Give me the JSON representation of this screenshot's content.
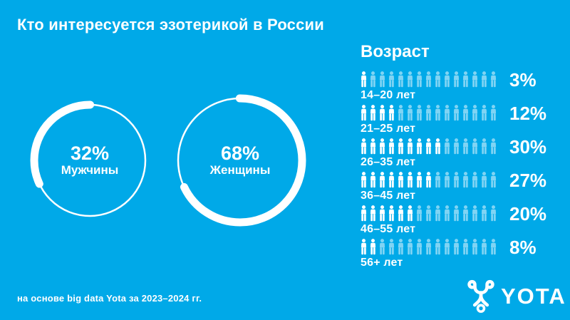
{
  "header": {
    "title": "Кто интересуется эзотерикой в России"
  },
  "donuts": [
    {
      "pct": "32%",
      "label": "Мужчины",
      "value": 32
    },
    {
      "pct": "68%",
      "label": "Женщины",
      "value": 68
    }
  ],
  "age": {
    "heading": "Возраст",
    "icons_per_row": 15,
    "rows": [
      {
        "label": "14–20 лет",
        "pct": "3%",
        "value": 3,
        "filled_icons": 1
      },
      {
        "label": "21–25 лет",
        "pct": "12%",
        "value": 12,
        "filled_icons": 4
      },
      {
        "label": "26–35 лет",
        "pct": "30%",
        "value": 30,
        "filled_icons": 9
      },
      {
        "label": "36–45 лет",
        "pct": "27%",
        "value": 27,
        "filled_icons": 8
      },
      {
        "label": "46–55 лет",
        "pct": "20%",
        "value": 20,
        "filled_icons": 6
      },
      {
        "label": "56+ лет",
        "pct": "8%",
        "value": 8,
        "filled_icons": 2
      }
    ]
  },
  "footer": {
    "source": "на основе big data Yota за 2023–2024 гг."
  },
  "logo": {
    "text": "YOTA",
    "icon": "yota-figure-icon"
  },
  "theme": {
    "background": "#00A9E8",
    "foreground": "#FFFFFF",
    "faded_icon": "rgba(255,255,255,0.5)"
  },
  "chart_data": [
    {
      "type": "pie",
      "title": "Пол (доля интересующихся эзотерикой)",
      "labels": [
        "Мужчины",
        "Женщины"
      ],
      "values": [
        32,
        68
      ],
      "unit": "%",
      "style": "two separate donut rings, highlighted white arc = share, arc starts at 12 o'clock"
    },
    {
      "type": "bar",
      "title": "Возраст",
      "categories": [
        "14–20 лет",
        "21–25 лет",
        "26–35 лет",
        "36–45 лет",
        "46–55 лет",
        "56+ лет"
      ],
      "values": [
        3,
        12,
        30,
        27,
        20,
        8
      ],
      "unit": "%",
      "style": "pictogram rows, 15 person icons per row, filled icons per row below",
      "filled_icons": [
        1,
        4,
        9,
        8,
        6,
        2
      ],
      "legend_position": "none",
      "grid": false
    }
  ]
}
